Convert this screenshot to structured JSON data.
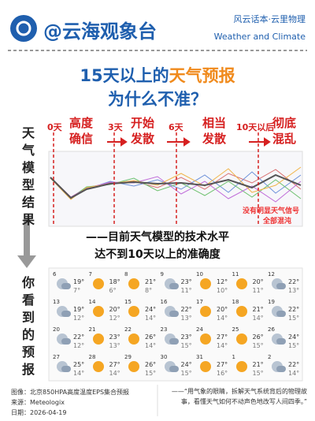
{
  "header": {
    "account": "@云海观象台",
    "series": "风云话本·云里物理",
    "subtitle": "Weather and Climate"
  },
  "title": {
    "line1_a": "15天以上的",
    "line1_b": "天气预报",
    "line2": "为什么不准？"
  },
  "side_labels": [
    "天气模型结果",
    "你看到的预报"
  ],
  "timeline": [
    {
      "day": "0天",
      "label": "高度确信"
    },
    {
      "day": "3天",
      "label": "开始发散"
    },
    {
      "day": "6天",
      "label": "相当发散"
    },
    {
      "day": "10天以后",
      "label": "彻底混乱"
    }
  ],
  "chart_notes": [
    "没有明显天气信号",
    "全部混沌"
  ],
  "conclusion": [
    "——目前天气模型的技术水平",
    "达不到10天以上的准确度"
  ],
  "calendar": {
    "days": [
      {
        "date": "6",
        "high": "19°",
        "low": "7°"
      },
      {
        "date": "7",
        "high": "18°",
        "low": "6°"
      },
      {
        "date": "8",
        "high": "21°",
        "low": "8°"
      },
      {
        "date": "9",
        "high": "23°",
        "low": "11°"
      },
      {
        "date": "10",
        "high": "12°",
        "low": "10°"
      },
      {
        "date": "11",
        "high": "20°",
        "low": "11°"
      },
      {
        "date": "12",
        "high": "22°",
        "low": "13°"
      },
      {
        "date": "13",
        "high": "19°",
        "low": "12°"
      },
      {
        "date": "14",
        "high": "20°",
        "low": "12°"
      },
      {
        "date": "15",
        "high": "24°",
        "low": "14°"
      },
      {
        "date": "16",
        "high": "22°",
        "low": "13°"
      },
      {
        "date": "17",
        "high": "20°",
        "low": "14°"
      },
      {
        "date": "18",
        "high": "21°",
        "low": "14°"
      },
      {
        "date": "19",
        "high": "22°",
        "low": "15°"
      },
      {
        "date": "20",
        "high": "22°",
        "low": "12°"
      },
      {
        "date": "21",
        "high": "23°",
        "low": "13°"
      },
      {
        "date": "22",
        "high": "26°",
        "low": "14°"
      },
      {
        "date": "23",
        "high": "23°",
        "low": "15°"
      },
      {
        "date": "24",
        "high": "27°",
        "low": "14°"
      },
      {
        "date": "25",
        "high": "26°",
        "low": "15°"
      },
      {
        "date": "26",
        "high": "24°",
        "low": "15°"
      },
      {
        "date": "27",
        "high": "25°",
        "low": "14°"
      },
      {
        "date": "28",
        "high": "27°",
        "low": "14°"
      },
      {
        "date": "29",
        "high": "26°",
        "low": "15°"
      },
      {
        "date": "30",
        "high": "24°",
        "low": "15°"
      },
      {
        "date": "31",
        "high": "27°",
        "low": "16°"
      },
      {
        "date": "1",
        "high": "21°",
        "low": "15°"
      },
      {
        "date": "2",
        "high": "22°",
        "low": "14°"
      }
    ]
  },
  "footer": {
    "image": "图像：北京850HPA高度温度EPS集合预报",
    "source": "来源：Meteologix",
    "date": "日期：2026-04-19",
    "quote": "——“用气象的眼睛，拆解天气系统背后的物理故事，看懂天气如何不动声色地改写人间四季。”"
  }
}
